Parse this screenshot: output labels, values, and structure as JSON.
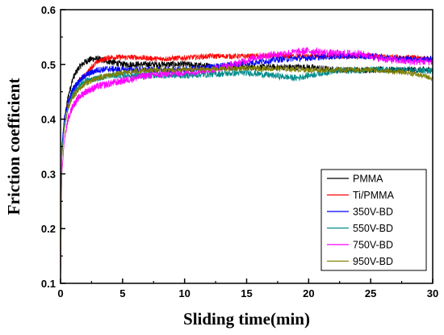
{
  "chart_data": {
    "type": "line",
    "title": "",
    "xlabel": "Sliding time(min)",
    "ylabel": "Friction coefficient",
    "xlim": [
      0,
      30
    ],
    "ylim": [
      0.1,
      0.6
    ],
    "x_ticks": [
      "0",
      "5",
      "10",
      "15",
      "20",
      "25",
      "30"
    ],
    "y_ticks": [
      "0.1",
      "0.2",
      "0.3",
      "0.4",
      "0.5",
      "0.6"
    ],
    "grid": false,
    "legend_position": "bottom-right",
    "series": [
      {
        "name": "PMMA",
        "color": "#000000",
        "noise": 0.006,
        "points": [
          [
            0,
            0.1
          ],
          [
            0.1,
            0.33
          ],
          [
            0.3,
            0.4
          ],
          [
            0.6,
            0.44
          ],
          [
            1,
            0.475
          ],
          [
            1.5,
            0.495
          ],
          [
            2,
            0.505
          ],
          [
            2.5,
            0.51
          ],
          [
            3,
            0.51
          ],
          [
            4,
            0.505
          ],
          [
            5,
            0.5
          ],
          [
            7,
            0.5
          ],
          [
            10,
            0.5
          ],
          [
            13,
            0.495
          ],
          [
            15,
            0.495
          ],
          [
            18,
            0.495
          ],
          [
            20,
            0.495
          ],
          [
            22,
            0.49
          ],
          [
            25,
            0.49
          ],
          [
            28,
            0.49
          ],
          [
            30,
            0.49
          ]
        ]
      },
      {
        "name": "Ti/PMMA",
        "color": "#ff0000",
        "noise": 0.005,
        "points": [
          [
            0,
            0.1
          ],
          [
            0.1,
            0.34
          ],
          [
            0.3,
            0.4
          ],
          [
            0.6,
            0.43
          ],
          [
            1,
            0.45
          ],
          [
            1.5,
            0.47
          ],
          [
            2,
            0.48
          ],
          [
            2.5,
            0.495
          ],
          [
            3,
            0.505
          ],
          [
            3.5,
            0.51
          ],
          [
            4,
            0.513
          ],
          [
            6,
            0.513
          ],
          [
            8,
            0.51
          ],
          [
            10,
            0.512
          ],
          [
            12,
            0.515
          ],
          [
            15,
            0.515
          ],
          [
            18,
            0.515
          ],
          [
            20,
            0.515
          ],
          [
            22,
            0.515
          ],
          [
            25,
            0.515
          ],
          [
            28,
            0.513
          ],
          [
            30,
            0.51
          ]
        ]
      },
      {
        "name": "350V-BD",
        "color": "#0000ff",
        "noise": 0.006,
        "points": [
          [
            0,
            0.1
          ],
          [
            0.1,
            0.35
          ],
          [
            0.3,
            0.4
          ],
          [
            0.6,
            0.43
          ],
          [
            1,
            0.455
          ],
          [
            1.5,
            0.47
          ],
          [
            2,
            0.48
          ],
          [
            2.5,
            0.485
          ],
          [
            3,
            0.49
          ],
          [
            4,
            0.492
          ],
          [
            5,
            0.49
          ],
          [
            7,
            0.49
          ],
          [
            10,
            0.49
          ],
          [
            12,
            0.495
          ],
          [
            14,
            0.5
          ],
          [
            16,
            0.505
          ],
          [
            18,
            0.51
          ],
          [
            20,
            0.512
          ],
          [
            22,
            0.515
          ],
          [
            25,
            0.515
          ],
          [
            28,
            0.51
          ],
          [
            30,
            0.51
          ]
        ]
      },
      {
        "name": "550V-BD",
        "color": "#008b8b",
        "noise": 0.006,
        "points": [
          [
            0,
            0.1
          ],
          [
            0.1,
            0.34
          ],
          [
            0.3,
            0.39
          ],
          [
            0.6,
            0.42
          ],
          [
            1,
            0.445
          ],
          [
            1.5,
            0.46
          ],
          [
            2,
            0.47
          ],
          [
            3,
            0.475
          ],
          [
            4,
            0.48
          ],
          [
            5,
            0.48
          ],
          [
            7,
            0.48
          ],
          [
            10,
            0.48
          ],
          [
            12,
            0.482
          ],
          [
            15,
            0.485
          ],
          [
            17,
            0.48
          ],
          [
            19,
            0.475
          ],
          [
            20,
            0.48
          ],
          [
            22,
            0.488
          ],
          [
            25,
            0.49
          ],
          [
            28,
            0.49
          ],
          [
            30,
            0.488
          ]
        ]
      },
      {
        "name": "750V-BD",
        "color": "#ff00ff",
        "noise": 0.007,
        "points": [
          [
            0,
            0.1
          ],
          [
            0.1,
            0.3
          ],
          [
            0.3,
            0.36
          ],
          [
            0.6,
            0.4
          ],
          [
            1,
            0.425
          ],
          [
            1.5,
            0.44
          ],
          [
            2,
            0.45
          ],
          [
            3,
            0.46
          ],
          [
            4,
            0.465
          ],
          [
            5,
            0.47
          ],
          [
            7,
            0.48
          ],
          [
            10,
            0.485
          ],
          [
            12,
            0.49
          ],
          [
            14,
            0.5
          ],
          [
            16,
            0.515
          ],
          [
            18,
            0.52
          ],
          [
            20,
            0.525
          ],
          [
            22,
            0.52
          ],
          [
            24,
            0.52
          ],
          [
            26,
            0.51
          ],
          [
            28,
            0.505
          ],
          [
            30,
            0.505
          ]
        ]
      },
      {
        "name": "950V-BD",
        "color": "#808000",
        "noise": 0.005,
        "points": [
          [
            0,
            0.1
          ],
          [
            0.1,
            0.33
          ],
          [
            0.3,
            0.38
          ],
          [
            0.6,
            0.42
          ],
          [
            1,
            0.44
          ],
          [
            1.5,
            0.455
          ],
          [
            2,
            0.465
          ],
          [
            3,
            0.475
          ],
          [
            4,
            0.48
          ],
          [
            5,
            0.485
          ],
          [
            7,
            0.49
          ],
          [
            10,
            0.49
          ],
          [
            13,
            0.492
          ],
          [
            15,
            0.493
          ],
          [
            18,
            0.492
          ],
          [
            20,
            0.49
          ],
          [
            22,
            0.49
          ],
          [
            25,
            0.49
          ],
          [
            28,
            0.485
          ],
          [
            30,
            0.475
          ]
        ]
      }
    ]
  }
}
